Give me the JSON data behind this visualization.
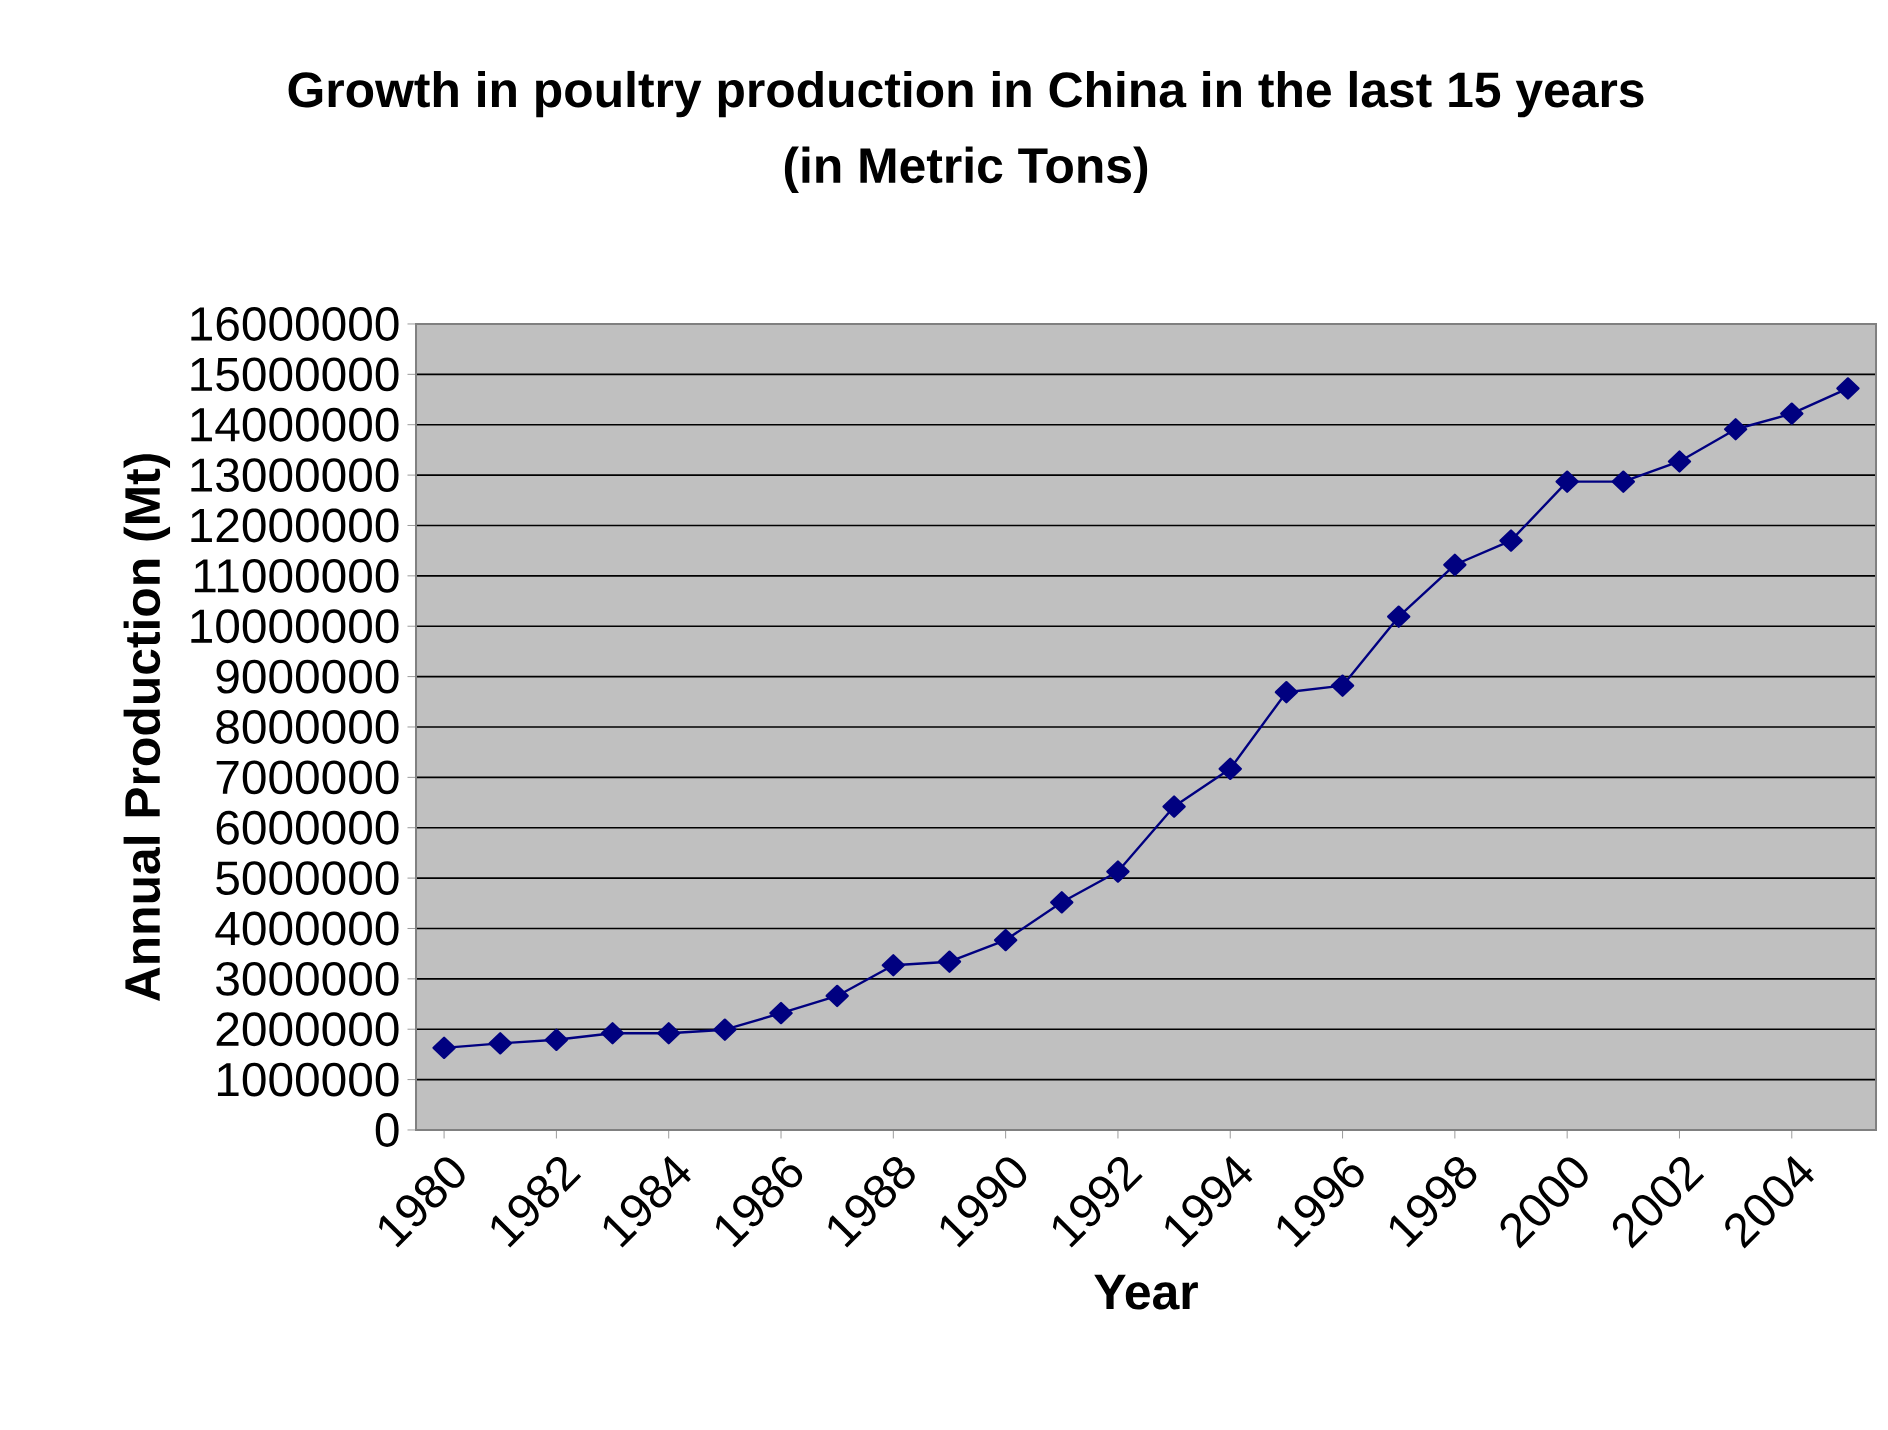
{
  "chart_data": {
    "type": "line",
    "title": "Growth in poultry production in China in the last 15 years",
    "subtitle": "(in Metric Tons)",
    "xlabel": "Year",
    "ylabel": "Annual Production (Mt)",
    "categories": [
      "1980",
      null,
      "1982",
      null,
      "1984",
      null,
      "1986",
      null,
      "1988",
      null,
      "1990",
      null,
      "1992",
      null,
      "1994",
      null,
      "1996",
      null,
      "1998",
      null,
      "2000",
      null,
      "2002",
      null,
      "2004",
      null
    ],
    "series": [
      {
        "color": "#000080",
        "values": [
          1630000,
          1720000,
          1790000,
          1920000,
          1920000,
          1990000,
          2320000,
          2660000,
          3270000,
          3340000,
          3770000,
          4520000,
          5130000,
          6420000,
          7170000,
          8690000,
          8820000,
          10190000,
          11220000,
          11700000,
          12870000,
          12870000,
          13270000,
          13910000,
          14220000,
          14720000
        ]
      }
    ],
    "ylim": [
      0,
      16000000
    ],
    "yticks": [
      0,
      1000000,
      2000000,
      3000000,
      4000000,
      5000000,
      6000000,
      7000000,
      8000000,
      9000000,
      10000000,
      11000000,
      12000000,
      13000000,
      14000000,
      15000000,
      16000000
    ],
    "grid": "y",
    "marker": "diamond",
    "line_style": "solid"
  }
}
